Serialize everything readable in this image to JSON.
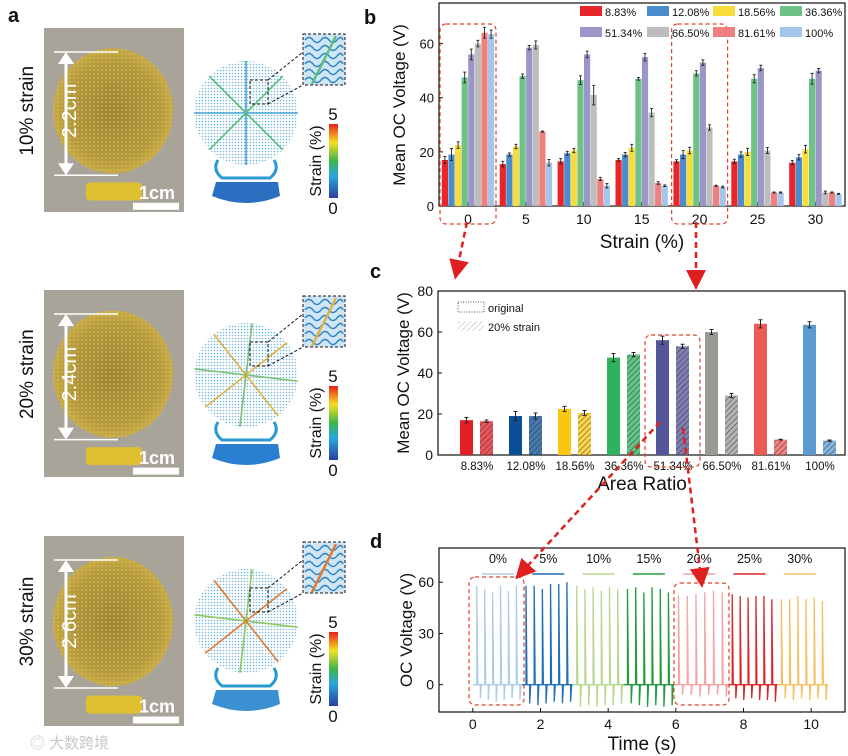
{
  "panel_labels": [
    "a",
    "b",
    "c",
    "d"
  ],
  "panel_a": {
    "rows": [
      {
        "strain_label": "10% strain",
        "length_label": "2.2cm",
        "scale_label": "1cm"
      },
      {
        "strain_label": "20% strain",
        "length_label": "2.4cm",
        "scale_label": "1cm"
      },
      {
        "strain_label": "30% strain",
        "length_label": "2.6cm",
        "scale_label": "1cm"
      }
    ],
    "colorbar": {
      "title": "Strain (%)",
      "max": "5",
      "min": "0"
    }
  },
  "watermark": "大数跨境",
  "chart_data": [
    {
      "id": "b",
      "type": "bar",
      "title": "",
      "xlabel": "Strain (%)",
      "ylabel": "Mean OC Voltage (V)",
      "ylim": [
        0,
        75
      ],
      "yticks": [
        "0",
        "20",
        "40",
        "60"
      ],
      "categories": [
        "0",
        "5",
        "10",
        "15",
        "20",
        "25",
        "30"
      ],
      "legend_placement": "top-right",
      "highlighted_categories": [
        "0",
        "20"
      ],
      "series": [
        {
          "name": "8.83%",
          "color": "#e8262a",
          "values": [
            17,
            15.5,
            16.5,
            17,
            16.5,
            16.5,
            16
          ],
          "errors": [
            1.3,
            1,
            1,
            0.5,
            0.6,
            0.8,
            0.8
          ]
        },
        {
          "name": "12.08%",
          "color": "#4a8ccc",
          "values": [
            19,
            19,
            19.5,
            19,
            19,
            19,
            18
          ],
          "errors": [
            2.2,
            0.6,
            0.7,
            0.8,
            1.5,
            1,
            1
          ]
        },
        {
          "name": "18.56%",
          "color": "#f8dc3c",
          "values": [
            22.5,
            22,
            20.5,
            21.5,
            20.5,
            20,
            21
          ],
          "errors": [
            1.2,
            0.8,
            0.8,
            1.3,
            1.2,
            1.3,
            1.4
          ]
        },
        {
          "name": "36.36%",
          "color": "#6fc287",
          "values": [
            47.5,
            48,
            46.5,
            47,
            49,
            47,
            47
          ],
          "errors": [
            2,
            0.8,
            1.6,
            0.5,
            1,
            1.5,
            2
          ]
        },
        {
          "name": "51.34%",
          "color": "#9a97c8",
          "values": [
            56,
            58.5,
            56,
            55,
            53,
            51,
            50
          ],
          "errors": [
            2,
            0.8,
            1.2,
            1.4,
            1,
            1,
            0.8
          ]
        },
        {
          "name": "66.50%",
          "color": "#bdbdbd",
          "values": [
            60,
            59.5,
            41,
            34.5,
            29,
            20.5,
            5
          ],
          "errors": [
            1.2,
            1.5,
            3.6,
            1.5,
            1,
            1.1,
            0.5
          ]
        },
        {
          "name": "81.61%",
          "color": "#ee8080",
          "values": [
            64,
            27.5,
            10,
            8.5,
            7.5,
            5,
            5
          ],
          "errors": [
            2,
            0.2,
            0.6,
            0.5,
            0.2,
            0.2,
            0.2
          ]
        },
        {
          "name": "100%",
          "color": "#a3c6ea",
          "values": [
            63.5,
            16,
            7.5,
            7.5,
            7,
            5,
            4.5
          ],
          "errors": [
            1.5,
            1.2,
            0.8,
            0.3,
            0.3,
            0.2,
            0.2
          ]
        }
      ]
    },
    {
      "id": "c",
      "type": "bar",
      "title": "",
      "xlabel": "Area Ratio",
      "ylabel": "Mean OC Voltage (V)",
      "ylim": [
        0,
        80
      ],
      "yticks": [
        "0",
        "20",
        "40",
        "60",
        "80"
      ],
      "categories": [
        "8.83%",
        "12.08%",
        "18.56%",
        "36.36%",
        "51.34%",
        "66.50%",
        "81.61%",
        "100%"
      ],
      "colors": [
        "#e31e24",
        "#0a4f96",
        "#f9c712",
        "#2fb25e",
        "#555599",
        "#999995",
        "#ec5a55",
        "#5b9bd2"
      ],
      "legend_placement": "top-left",
      "highlighted_categories": [
        "51.34%"
      ],
      "series": [
        {
          "name": "original",
          "values": [
            17,
            19,
            22.5,
            47.5,
            56,
            60,
            64,
            63.5
          ],
          "errors": [
            1.3,
            2.2,
            1.2,
            2,
            2,
            1.2,
            2,
            1.5
          ]
        },
        {
          "name": "20% strain",
          "values": [
            16.5,
            19,
            20.5,
            49,
            53,
            29,
            7.5,
            7
          ],
          "errors": [
            0.6,
            1.5,
            1.2,
            1,
            1,
            1,
            0.2,
            0.3
          ]
        }
      ]
    },
    {
      "id": "d",
      "type": "line",
      "title": "",
      "xlabel": "Time (s)",
      "ylabel": "OC Voltage (V)",
      "xlim": [
        -1,
        11
      ],
      "ylim": [
        -16,
        80
      ],
      "xticks": [
        "0",
        "2",
        "4",
        "6",
        "8",
        "10"
      ],
      "yticks": [
        "0",
        "30",
        "60"
      ],
      "legend_placement": "top",
      "highlighted_series": [
        "0%",
        "20%"
      ],
      "series": [
        {
          "name": "0%",
          "color": "#aecbe8",
          "t_start": 0,
          "t_end": 1.45,
          "peaks": [
            58,
            56,
            54,
            58,
            55,
            58
          ],
          "dips": [
            -8,
            -9,
            -10,
            -9,
            -8,
            -9
          ]
        },
        {
          "name": "5%",
          "color": "#1f6fb5",
          "t_start": 1.45,
          "t_end": 2.95,
          "peaks": [
            58,
            58,
            56,
            59,
            59,
            60
          ],
          "dips": [
            -11,
            -12,
            -11,
            -10,
            -11,
            -10
          ]
        },
        {
          "name": "10%",
          "color": "#b5d88c",
          "t_start": 2.95,
          "t_end": 4.45,
          "peaks": [
            58,
            56,
            57,
            55,
            57,
            56
          ],
          "dips": [
            -13,
            -12,
            -13,
            -12,
            -12,
            -11
          ]
        },
        {
          "name": "15%",
          "color": "#239b3c",
          "t_start": 4.45,
          "t_end": 5.95,
          "peaks": [
            56,
            57,
            54,
            57,
            56,
            54
          ],
          "dips": [
            -11,
            -12,
            -13,
            -12,
            -13,
            -12
          ]
        },
        {
          "name": "20%",
          "color": "#f4a6a6",
          "t_start": 5.95,
          "t_end": 7.55,
          "peaks": [
            52,
            52,
            53,
            54,
            55,
            54
          ],
          "dips": [
            -6,
            -6,
            -7,
            -6,
            -6,
            -7
          ]
        },
        {
          "name": "25%",
          "color": "#d8262a",
          "t_start": 7.55,
          "t_end": 9.0,
          "peaks": [
            53,
            52,
            51,
            52,
            52,
            50
          ],
          "dips": [
            -8,
            -9,
            -8,
            -9,
            -9,
            -10
          ]
        },
        {
          "name": "30%",
          "color": "#f5c060",
          "t_start": 9.0,
          "t_end": 10.5,
          "peaks": [
            50,
            50,
            52,
            50,
            51,
            49
          ],
          "dips": [
            -8,
            -9,
            -8,
            -9,
            -8,
            -9
          ]
        }
      ]
    }
  ]
}
